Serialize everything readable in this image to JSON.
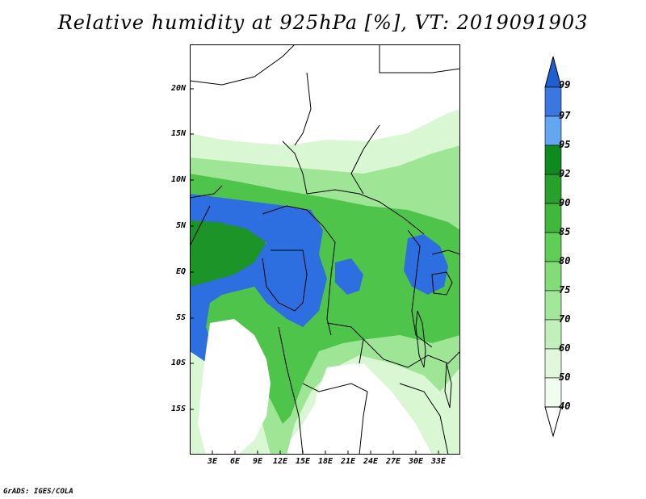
{
  "title": "Relative humidity at 925hPa [%], VT: 2019091903",
  "credit": "GrADS: IGES/COLA",
  "lat_labels": [
    "20N",
    "15N",
    "10N",
    "5N",
    "EQ",
    "5S",
    "10S",
    "15S"
  ],
  "lon_labels": [
    "3E",
    "6E",
    "9E",
    "12E",
    "15E",
    "18E",
    "21E",
    "24E",
    "27E",
    "30E",
    "33E"
  ],
  "colorbar": {
    "levels": [
      "99",
      "97",
      "95",
      "92",
      "90",
      "85",
      "80",
      "75",
      "70",
      "60",
      "50",
      "40"
    ],
    "colors": [
      "#1e5fd1",
      "#3a78e0",
      "#62a7f0",
      "#0f8a1e",
      "#27a02c",
      "#3fb83c",
      "#5fce57",
      "#82dc78",
      "#a3e89a",
      "#c2f0bb",
      "#def8d9",
      "#f1fdef"
    ]
  },
  "map_colors": {
    "very_humid_blue": "#2d6ee0",
    "dark_green": "#1c9428",
    "mid_green": "#4fc44a",
    "light_green": "#9ee696",
    "pale_green": "#d8f7d2",
    "dry_white": "#ffffff"
  }
}
